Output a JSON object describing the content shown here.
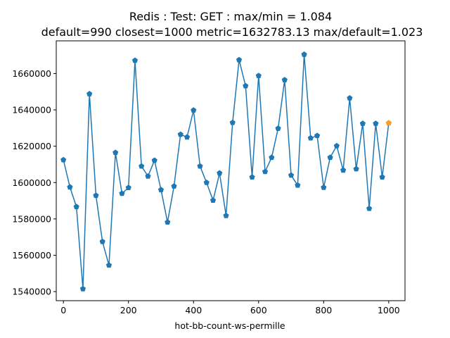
{
  "chart_data": {
    "type": "line",
    "title": "Redis : Test: GET : max/min = 1.084",
    "subtitle": "default=990 closest=1000 metric=1632783.13 max/default=1.023",
    "xlabel": "hot-bb-count-ws-permille",
    "ylabel": "",
    "xlim": [
      -22,
      1050
    ],
    "ylim": [
      1535000,
      1678000
    ],
    "x_ticks": [
      0,
      200,
      400,
      600,
      800,
      1000
    ],
    "y_ticks": [
      1540000,
      1560000,
      1580000,
      1600000,
      1620000,
      1640000,
      1660000
    ],
    "grid": false,
    "line_color": "#1f77b4",
    "highlight_color": "#ff9f1c",
    "series": [
      {
        "x": [
          0,
          20,
          40,
          60,
          80,
          100,
          120,
          140,
          160,
          180,
          200,
          220,
          240,
          260,
          280,
          300,
          320,
          340,
          360,
          380,
          400,
          420,
          440,
          460,
          480,
          500,
          520,
          540,
          560,
          580,
          600,
          620,
          640,
          660,
          680,
          700,
          720,
          740,
          760,
          780,
          800,
          820,
          840,
          860,
          880,
          900,
          920,
          940,
          960,
          980,
          1000
        ],
        "values": [
          1612500,
          1597500,
          1586700,
          1541500,
          1648800,
          1592900,
          1567500,
          1554500,
          1616500,
          1594000,
          1597200,
          1667200,
          1609000,
          1603500,
          1612200,
          1596000,
          1578200,
          1598000,
          1626500,
          1625000,
          1639800,
          1609000,
          1600000,
          1590200,
          1605200,
          1581800,
          1633000,
          1667500,
          1653200,
          1603000,
          1658800,
          1606000,
          1613800,
          1629800,
          1656500,
          1604000,
          1598500,
          1670500,
          1624500,
          1625800,
          1597300,
          1613800,
          1620200,
          1606800,
          1646500,
          1607500,
          1632500,
          1585700,
          1632500,
          1603000,
          1632783.13
        ]
      }
    ],
    "highlight_point": {
      "x": 1000,
      "y": 1632783.13
    }
  }
}
